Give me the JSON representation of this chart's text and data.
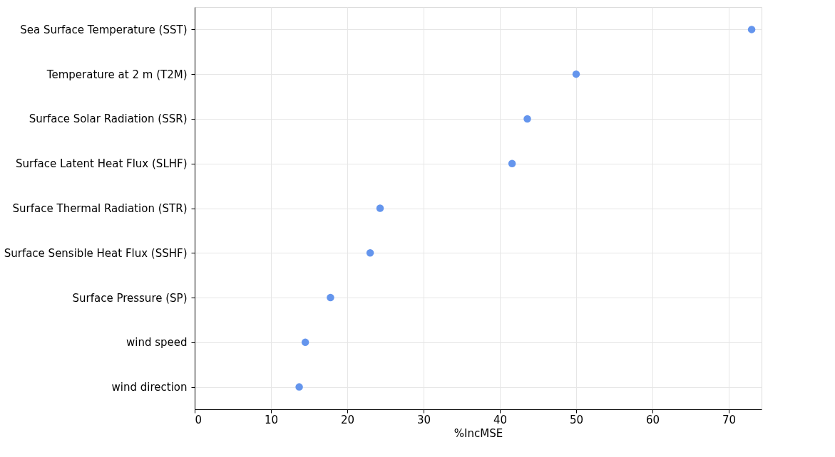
{
  "chart_data": {
    "type": "scatter",
    "xlabel": "%IncMSE",
    "categories": [
      "Sea Surface Temperature (SST)",
      "Temperature at 2 m (T2M)",
      "Surface Solar Radiation (SSR)",
      "Surface Latent Heat Flux (SLHF)",
      "Surface Thermal Radiation (STR)",
      "Surface Sensible Heat Flux (SSHF)",
      "Surface Pressure (SP)",
      "wind speed",
      "wind direction"
    ],
    "series": [
      {
        "color": "#6495ed",
        "values": [
          73.0,
          50.0,
          43.6,
          41.6,
          24.3,
          23.0,
          17.8,
          14.5,
          13.7
        ]
      }
    ],
    "orientation": "horizontal",
    "xlim": [
      0,
      74.3
    ],
    "xticks": [
      0,
      10,
      20,
      30,
      40,
      50,
      60,
      70
    ],
    "grid": true,
    "marker": "circle"
  }
}
